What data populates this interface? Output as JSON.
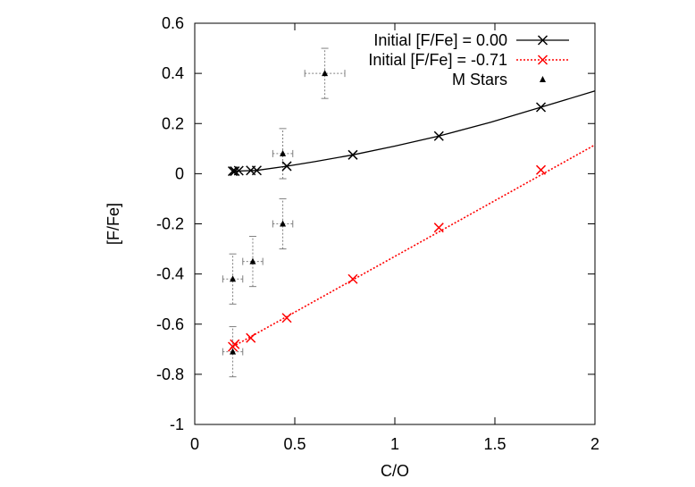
{
  "chart_data": {
    "type": "scatter",
    "xlabel": "C/O",
    "ylabel": "[F/Fe]",
    "xlim": [
      0,
      2
    ],
    "ylim": [
      -1,
      0.6
    ],
    "x_ticks": [
      0,
      0.5,
      1,
      1.5,
      2
    ],
    "x_tick_labels": [
      "0",
      "0.5",
      "1",
      "1.5",
      "2"
    ],
    "y_ticks": [
      -1,
      -0.8,
      -0.6,
      -0.4,
      -0.2,
      0,
      0.2,
      0.4,
      0.6
    ],
    "y_tick_labels": [
      "-1",
      "-0.8",
      "-0.6",
      "-0.4",
      "-0.2",
      "0",
      "0.2",
      "0.4",
      "0.6"
    ],
    "grid": false,
    "legend_position": "top-right",
    "series": [
      {
        "name": "Initial [F/Fe] = 0.00",
        "kind": "line-with-markers",
        "color": "#000000",
        "line_style": "solid",
        "marker": "x",
        "points": [
          {
            "x": 0.19,
            "y": 0.01
          },
          {
            "x": 0.2,
            "y": 0.01
          },
          {
            "x": 0.22,
            "y": 0.012
          },
          {
            "x": 0.28,
            "y": 0.013
          },
          {
            "x": 0.31,
            "y": 0.013
          },
          {
            "x": 0.46,
            "y": 0.03
          },
          {
            "x": 0.79,
            "y": 0.075
          },
          {
            "x": 1.22,
            "y": 0.15
          },
          {
            "x": 1.73,
            "y": 0.265
          }
        ],
        "curve": [
          {
            "x": 0.19,
            "y": 0.01
          },
          {
            "x": 0.31,
            "y": 0.013
          },
          {
            "x": 0.46,
            "y": 0.03
          },
          {
            "x": 0.6,
            "y": 0.048
          },
          {
            "x": 0.79,
            "y": 0.075
          },
          {
            "x": 1.0,
            "y": 0.11
          },
          {
            "x": 1.22,
            "y": 0.15
          },
          {
            "x": 1.48,
            "y": 0.205
          },
          {
            "x": 1.73,
            "y": 0.265
          },
          {
            "x": 2.0,
            "y": 0.33
          }
        ]
      },
      {
        "name": "Initial [F/Fe] = -0.71",
        "kind": "line-with-markers",
        "color": "#ff0000",
        "line_style": "dotted",
        "marker": "x",
        "points": [
          {
            "x": 0.19,
            "y": -0.69
          },
          {
            "x": 0.2,
            "y": -0.68
          },
          {
            "x": 0.28,
            "y": -0.655
          },
          {
            "x": 0.46,
            "y": -0.575
          },
          {
            "x": 0.79,
            "y": -0.42
          },
          {
            "x": 1.22,
            "y": -0.215
          },
          {
            "x": 1.73,
            "y": 0.015
          }
        ],
        "curve": [
          {
            "x": 0.19,
            "y": -0.69
          },
          {
            "x": 2.0,
            "y": 0.115
          }
        ]
      },
      {
        "name": "M Stars",
        "kind": "points-with-error-bars",
        "color": "#000000",
        "marker": "triangle",
        "points": [
          {
            "x": 0.65,
            "y": 0.4,
            "xerr": 0.1,
            "yerr": 0.1
          },
          {
            "x": 0.44,
            "y": 0.08,
            "xerr": 0.05,
            "yerr": 0.1
          },
          {
            "x": 0.44,
            "y": -0.2,
            "xerr": 0.05,
            "yerr": 0.1
          },
          {
            "x": 0.29,
            "y": -0.35,
            "xerr": 0.05,
            "yerr": 0.1
          },
          {
            "x": 0.19,
            "y": -0.42,
            "xerr": 0.05,
            "yerr": 0.1
          },
          {
            "x": 0.19,
            "y": -0.71,
            "xerr": 0.05,
            "yerr": 0.1
          }
        ]
      }
    ]
  }
}
